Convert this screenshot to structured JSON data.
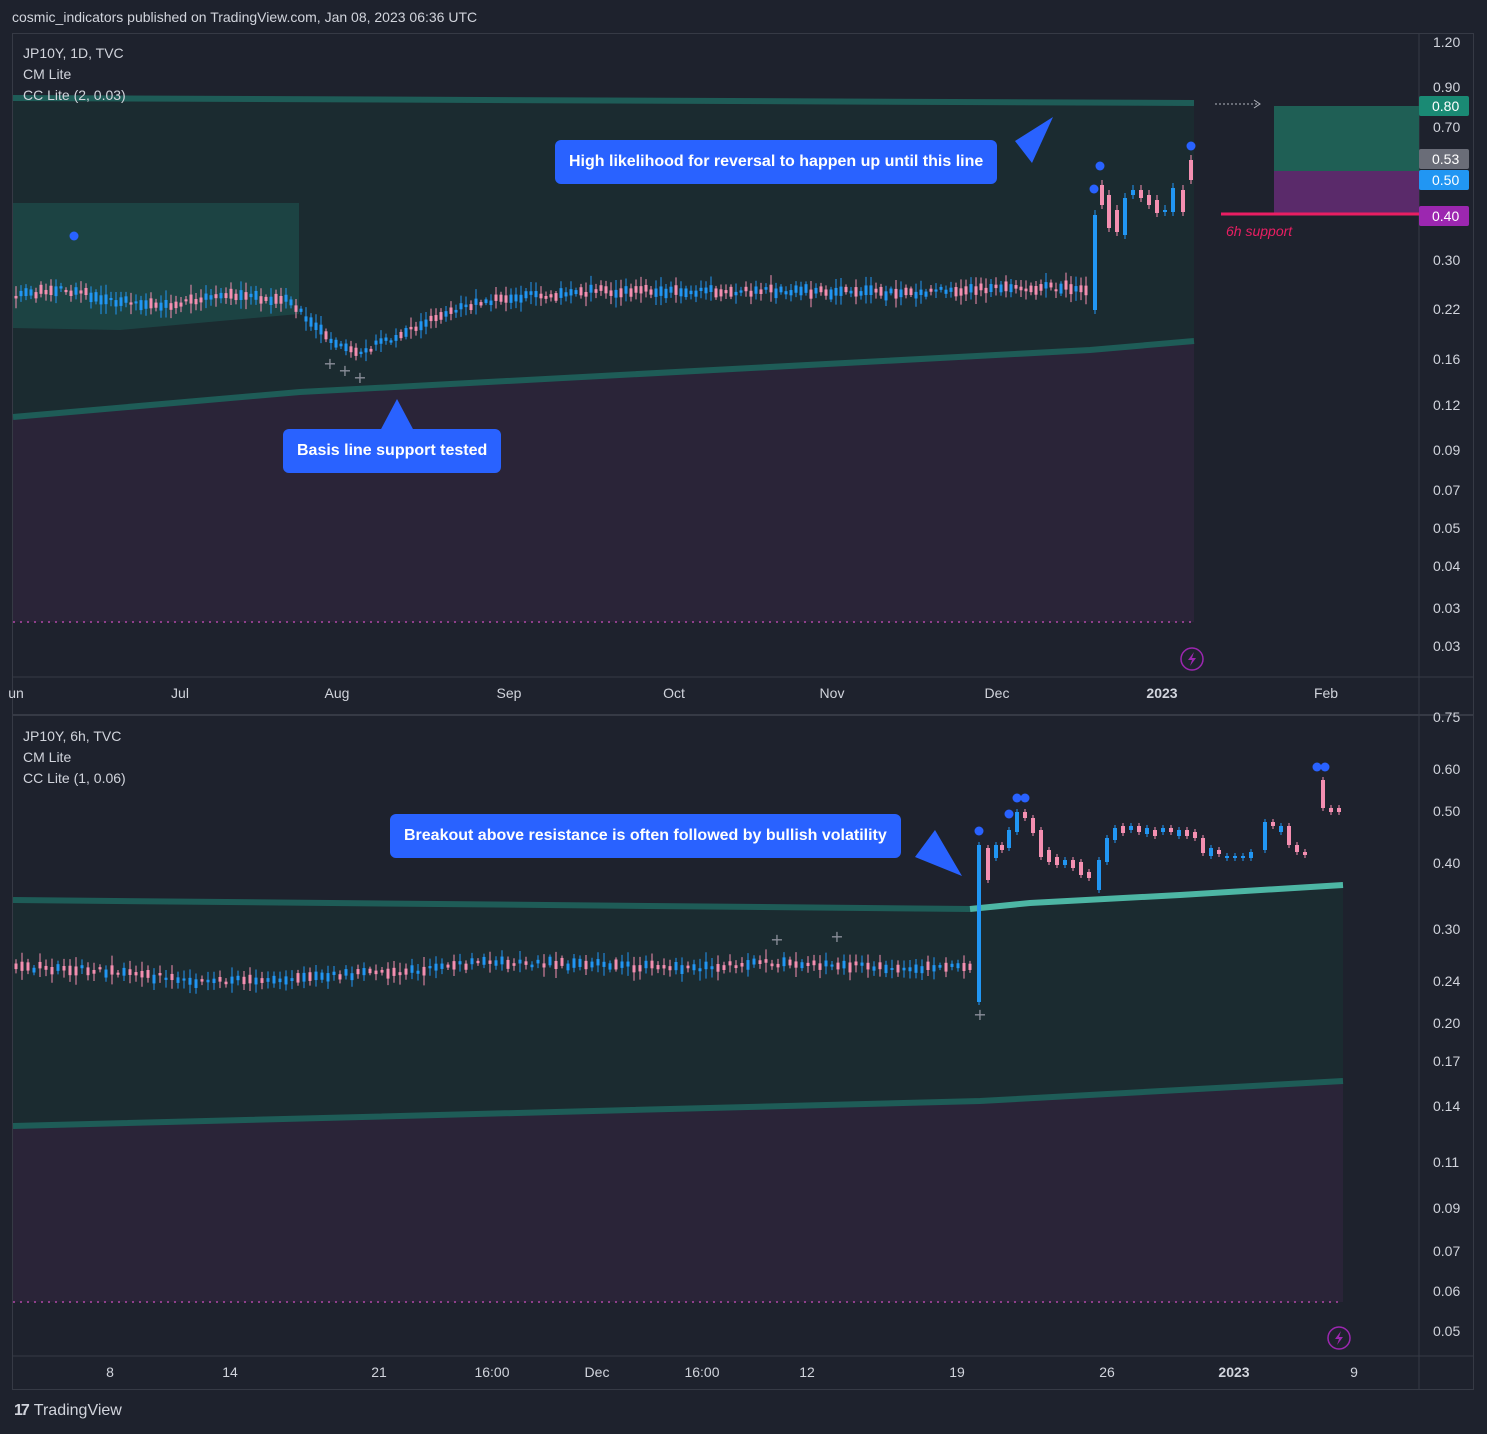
{
  "header": {
    "publisher_line": "cosmic_indicators published on TradingView.com, Jan 08, 2023 06:36 UTC"
  },
  "footer": {
    "brand": "TradingView"
  },
  "colors": {
    "background": "#1e222d",
    "up_candle": "#2196f3",
    "down_candle": "#f48fb1",
    "band_fill": "#1b2b30",
    "lower_fill": "#2a2438",
    "band_line": "#1e5c57",
    "support_line": "#e91e63",
    "callout": "#2962ff"
  },
  "chart_data": [
    {
      "type": "candlestick",
      "symbol_line": "JP10Y, 1D, TVC",
      "indicators": [
        "CM Lite",
        "CC Lite (2, 0.03)"
      ],
      "y_scale": "log",
      "y_ticks": [
        "1.20",
        "0.90",
        "0.70",
        "0.30",
        "0.22",
        "0.16",
        "0.12",
        "0.09",
        "0.07",
        "0.05",
        "0.04",
        "0.03",
        "0.03"
      ],
      "x_ticks": [
        "un",
        "Jul",
        "Aug",
        "Sep",
        "Oct",
        "Nov",
        "Dec",
        "2023",
        "Feb"
      ],
      "price_labels": [
        {
          "text": "0.80",
          "color": "#1a8a74"
        },
        {
          "text": "0.53",
          "color": "#6a6d78"
        },
        {
          "text": "0.50",
          "color": "#2196f3"
        },
        {
          "text": "0.40",
          "color": "#9c27b0"
        }
      ],
      "annotations": [
        "High likelihood for reversal to happen up until this line",
        "Basis line support tested",
        "6h support"
      ],
      "approx_close_series": {
        "start": "2022-06-01",
        "end": "2023-01-06",
        "range_low": 0.17,
        "range_high": 0.5
      }
    },
    {
      "type": "candlestick",
      "symbol_line": "JP10Y, 6h, TVC",
      "indicators": [
        "CM Lite",
        "CC Lite (1, 0.06)"
      ],
      "y_scale": "log",
      "y_ticks": [
        "0.60",
        "0.50",
        "0.40",
        "0.30",
        "0.24",
        "0.20",
        "0.17",
        "0.14",
        "0.11",
        "0.09",
        "0.07",
        "0.06",
        "0.05"
      ],
      "x_ticks": [
        "8",
        "14",
        "21",
        "16:00",
        "Dec",
        "16:00",
        "12",
        "19",
        "26",
        "2023",
        "9"
      ],
      "annotations": [
        "Breakout above resistance is often followed by bullish volatility"
      ],
      "approx_close_series": {
        "start": "2022-11-04",
        "end": "2023-01-08",
        "range_low": 0.23,
        "range_high": 0.57
      }
    }
  ]
}
